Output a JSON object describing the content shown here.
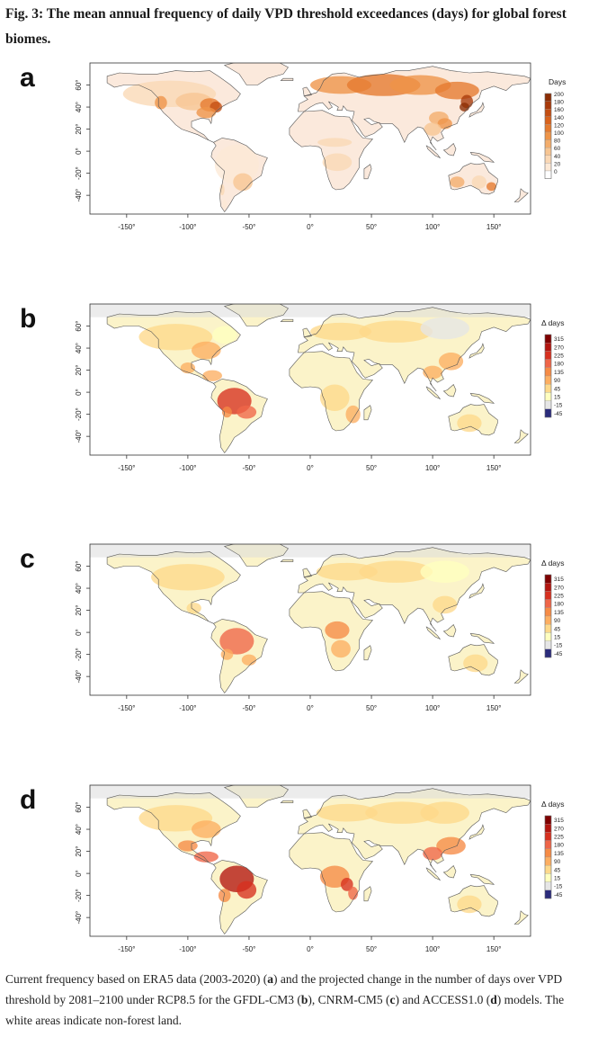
{
  "figure": {
    "title": "Fig. 3: The mean annual frequency of daily VPD threshold exceedances (days) for global forest biomes."
  },
  "caption": {
    "t1": "Current frequency based on ERA5 data (2003-2020) (",
    "a": "a",
    "t2": ") and the projected change in the number of days over VPD threshold by 2081–2100 under RCP8.5 for the GFDL-CM3 (",
    "b": "b",
    "t3": "), CNRM-CM5 (",
    "c": "c",
    "t4": ") and ACCESS1.0 (",
    "d": "d",
    "t5": ") models. The white areas indicate non-forest land."
  },
  "chart_data": [
    {
      "type": "heatmap",
      "panel_label": "a",
      "legend_title": "Days",
      "legend_ticks": [
        "200",
        "180",
        "160",
        "140",
        "120",
        "100",
        "80",
        "60",
        "40",
        "20",
        "0"
      ],
      "legend_colors": [
        "#8c2d04",
        "#a83a0a",
        "#c44e12",
        "#d9621c",
        "#e57a2e",
        "#ee9448",
        "#f3ad6c",
        "#f7c592",
        "#fad8b5",
        "#fde9d6",
        "#ffffff"
      ],
      "x_ticks": [
        "-150°",
        "-100°",
        "-50°",
        "0°",
        "50°",
        "100°",
        "150°"
      ],
      "y_ticks": [
        "60°",
        "40°",
        "20°",
        "0°",
        "-20°",
        "-40°"
      ],
      "xlim": [
        -180,
        180
      ],
      "ylim": [
        -57,
        80
      ]
    },
    {
      "type": "heatmap",
      "panel_label": "b",
      "legend_title": "Δ days",
      "legend_ticks": [
        "315",
        "270",
        "225",
        "180",
        "135",
        "90",
        "45",
        "15",
        "-15",
        "-45"
      ],
      "legend_colors": [
        "#7f0000",
        "#b3150f",
        "#d7301f",
        "#ef6548",
        "#f68b45",
        "#fdae61",
        "#fed98b",
        "#ffffbf",
        "#e6e6e6",
        "#2b2c7c"
      ],
      "x_ticks": [
        "-150°",
        "-100°",
        "-50°",
        "0°",
        "50°",
        "100°",
        "150°"
      ],
      "y_ticks": [
        "60°",
        "40°",
        "20°",
        "0°",
        "-20°",
        "-40°"
      ],
      "xlim": [
        -180,
        180
      ],
      "ylim": [
        -57,
        80
      ]
    },
    {
      "type": "heatmap",
      "panel_label": "c",
      "legend_title": "Δ days",
      "legend_ticks": [
        "315",
        "270",
        "225",
        "180",
        "135",
        "90",
        "45",
        "15",
        "-15",
        "-45"
      ],
      "legend_colors": [
        "#7f0000",
        "#b3150f",
        "#d7301f",
        "#ef6548",
        "#f68b45",
        "#fdae61",
        "#fed98b",
        "#ffffbf",
        "#e6e6e6",
        "#2b2c7c"
      ],
      "x_ticks": [
        "-150°",
        "-100°",
        "-50°",
        "0°",
        "50°",
        "100°",
        "150°"
      ],
      "y_ticks": [
        "60°",
        "40°",
        "20°",
        "0°",
        "-20°",
        "-40°"
      ],
      "xlim": [
        -180,
        180
      ],
      "ylim": [
        -57,
        80
      ]
    },
    {
      "type": "heatmap",
      "panel_label": "d",
      "legend_title": "Δ days",
      "legend_ticks": [
        "315",
        "270",
        "225",
        "180",
        "135",
        "90",
        "45",
        "15",
        "-15",
        "-45"
      ],
      "legend_colors": [
        "#7f0000",
        "#b3150f",
        "#d7301f",
        "#ef6548",
        "#f68b45",
        "#fdae61",
        "#fed98b",
        "#ffffbf",
        "#e6e6e6",
        "#2b2c7c"
      ],
      "x_ticks": [
        "-150°",
        "-100°",
        "-50°",
        "0°",
        "50°",
        "100°",
        "150°"
      ],
      "y_ticks": [
        "60°",
        "40°",
        "20°",
        "0°",
        "-20°",
        "-40°"
      ],
      "xlim": [
        -180,
        180
      ],
      "ylim": [
        -57,
        80
      ]
    }
  ]
}
